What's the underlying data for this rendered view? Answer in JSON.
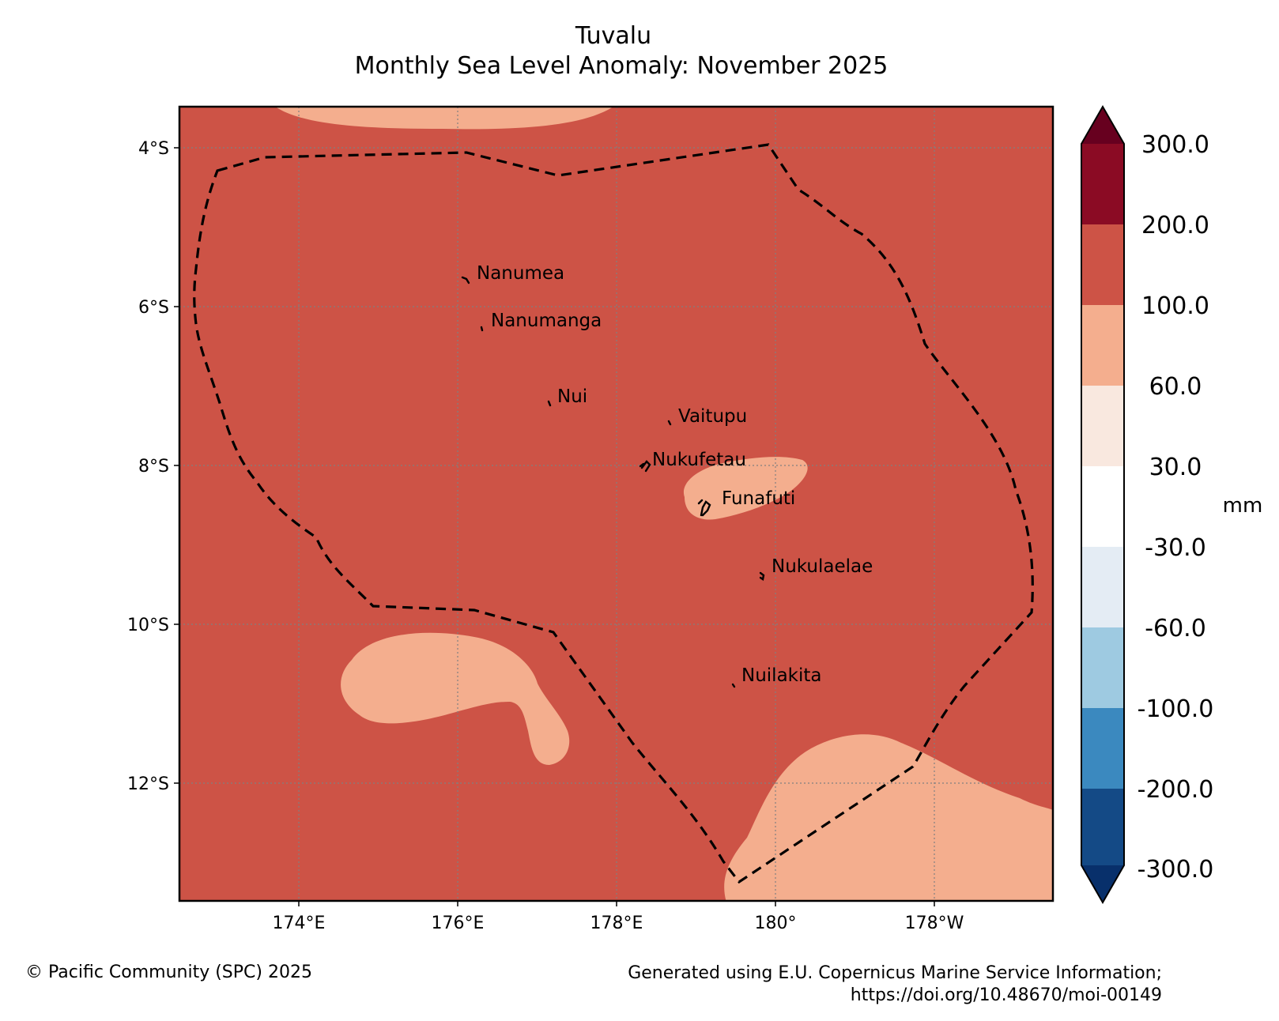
{
  "title": {
    "line1": "Tuvalu",
    "line2": "Monthly Sea Level Anomaly: November 2025"
  },
  "axes": {
    "y_ticks": [
      "4°S",
      "6°S",
      "8°S",
      "10°S",
      "12°S"
    ],
    "x_ticks": [
      "174°E",
      "176°E",
      "178°E",
      "180°",
      "178°W"
    ]
  },
  "islands": [
    {
      "name": "Nanumea"
    },
    {
      "name": "Nanumanga"
    },
    {
      "name": "Nui"
    },
    {
      "name": "Vaitupu"
    },
    {
      "name": "Nukufetau"
    },
    {
      "name": "Funafuti"
    },
    {
      "name": "Nukulaelae"
    },
    {
      "name": "Nuilakita"
    }
  ],
  "colorbar": {
    "unit": "mm",
    "labels": [
      "300.0",
      "200.0",
      "100.0",
      "60.0",
      "30.0",
      "-30.0",
      "-60.0",
      "-100.0",
      "-200.0",
      "-300.0"
    ],
    "colors": [
      "#67001f",
      "#8b0b24",
      "#cd5346",
      "#f4ae8e",
      "#f9e8df",
      "#ffffff",
      "#e4ecf4",
      "#9ecae1",
      "#3b89bf",
      "#144a86",
      "#08306b"
    ]
  },
  "field": {
    "background_color": "#cd5346",
    "anomaly_patch_color": "#f4ae8e"
  },
  "footer": {
    "copyright": "© Pacific Community (SPC) 2025",
    "source_line1": "Generated using E.U. Copernicus Marine Service Information;",
    "source_line2": "https://doi.org/10.48670/moi-00149"
  }
}
